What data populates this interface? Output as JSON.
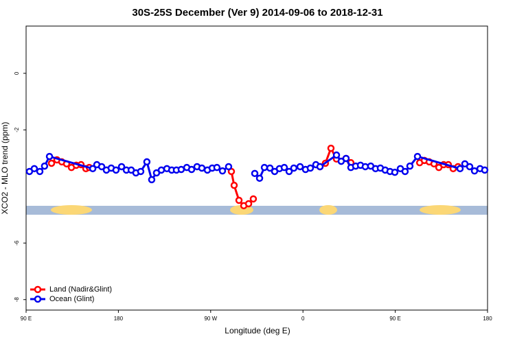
{
  "chart_data": {
    "type": "line",
    "title": "30S-25S December (Ver 9)   2014-09-06 to 2018-12-31",
    "x_label": "Longitude (deg E)",
    "y_label": "XCO2 - MLO trend (ppm)",
    "xlim": [
      90,
      540
    ],
    "xticks": [
      {
        "value": 90,
        "label": "90 E"
      },
      180,
      {
        "value": 270,
        "label": "90 W"
      },
      {
        "value": 360,
        "label": "0"
      },
      {
        "value": 450,
        "label": "90 E"
      },
      {
        "value": 540,
        "label": "180"
      }
    ],
    "ylim": [
      -8.37,
      1.67
    ],
    "yticks": [
      0,
      -2,
      -6,
      -8
    ],
    "legend": "bottom-left",
    "series": [
      {
        "name": "Land (Nadir&Glint)",
        "color": "#ff0000",
        "x": [
          114.8,
          120.1,
          124.8,
          129.5,
          134.2,
          138.9,
          143.6,
          148.3,
          151.6,
          220,
          290.2,
          292.9,
          297.6,
          302.3,
          307,
          311.6,
          350,
          376.6,
          381.9,
          387.3,
          392.7,
          402,
          406.7,
          460,
          473.8,
          478.4,
          483.1,
          487.8,
          492.5,
          497.2,
          501.8,
          506.5,
          511.2
        ],
        "values": [
          -3.18,
          -3.06,
          -3.13,
          -3.2,
          -3.33,
          -3.25,
          -3.23,
          -3.37,
          -3.33,
          null,
          -3.47,
          -3.96,
          -4.49,
          -4.68,
          -4.61,
          -4.44,
          null,
          -3.3,
          -3.18,
          -2.65,
          -3.03,
          -3.01,
          -3.16,
          null,
          -3.16,
          -3.08,
          -3.13,
          -3.2,
          -3.33,
          -3.23,
          -3.23,
          -3.37,
          -3.3
        ]
      },
      {
        "name": "Ocean (Glint)",
        "color": "#0000ee",
        "x": [
          93.3,
          98,
          103.4,
          108,
          112.8,
          155,
          159,
          163.7,
          168.3,
          173,
          177.7,
          183.1,
          187.8,
          192.5,
          197.1,
          201.8,
          207.8,
          212.5,
          217.2,
          221.9,
          227.3,
          232,
          236.6,
          241.3,
          246.7,
          251.4,
          256.7,
          261.4,
          266.8,
          271.5,
          276.1,
          281.5,
          287.5,
          300,
          313,
          317.7,
          322.4,
          327.8,
          332.4,
          337.1,
          341.8,
          346.5,
          351.1,
          357.2,
          362.5,
          367.2,
          372.6,
          376.6,
          392.7,
          397.3,
          402,
          406.7,
          411.4,
          416.1,
          420.8,
          426.1,
          430.8,
          435.5,
          440.2,
          444.9,
          449.6,
          455,
          459.6,
          464.3,
          471.7,
          513.2,
          517.9,
          522.6,
          527.3,
          532.7,
          537.3
        ],
        "values": [
          -3.47,
          -3.37,
          -3.47,
          -3.28,
          -2.94,
          -3.37,
          -3.23,
          -3.3,
          -3.42,
          -3.35,
          -3.42,
          -3.3,
          -3.42,
          -3.42,
          -3.52,
          -3.47,
          -3.13,
          -3.76,
          -3.52,
          -3.42,
          -3.37,
          -3.42,
          -3.42,
          -3.4,
          -3.33,
          -3.4,
          -3.3,
          -3.35,
          -3.42,
          -3.35,
          -3.33,
          -3.45,
          -3.3,
          null,
          -3.54,
          -3.71,
          -3.33,
          -3.35,
          -3.47,
          -3.37,
          -3.33,
          -3.47,
          -3.35,
          -3.3,
          -3.4,
          -3.35,
          -3.23,
          -3.3,
          -2.89,
          -3.11,
          -3.01,
          -3.33,
          -3.28,
          -3.25,
          -3.3,
          -3.28,
          -3.37,
          -3.35,
          -3.42,
          -3.47,
          -3.5,
          -3.37,
          -3.47,
          -3.28,
          -2.94,
          -3.37,
          -3.2,
          -3.3,
          -3.45,
          -3.37,
          -3.42
        ]
      }
    ]
  }
}
